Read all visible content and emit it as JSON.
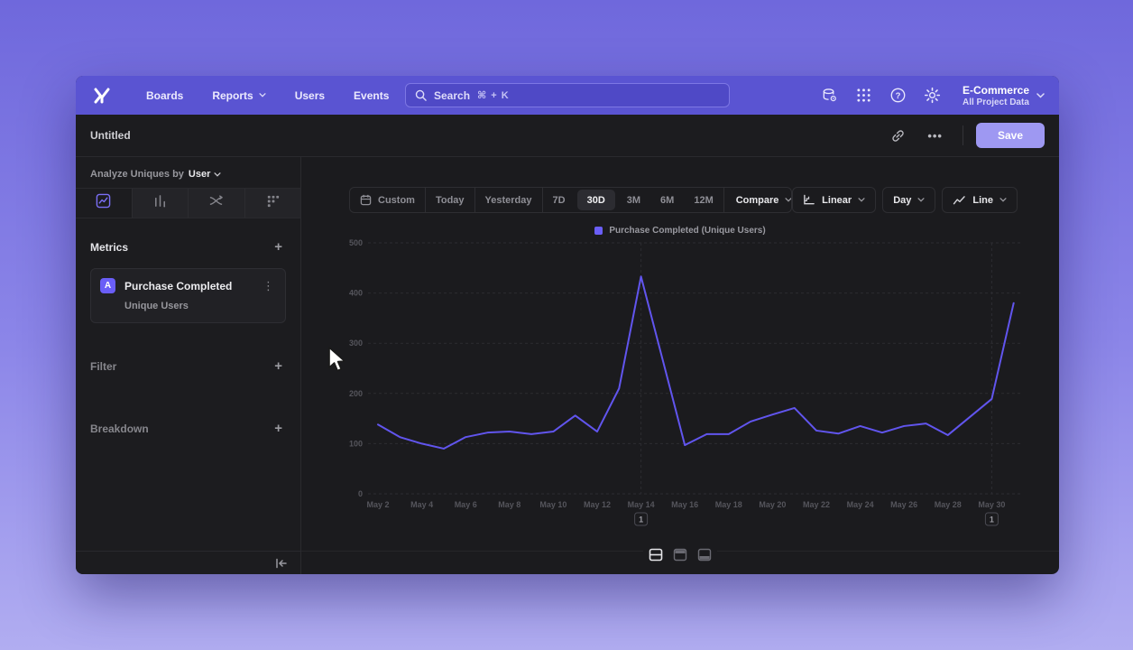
{
  "topnav": {
    "items": [
      {
        "label": "Boards",
        "chevron": false
      },
      {
        "label": "Reports",
        "chevron": true
      },
      {
        "label": "Users",
        "chevron": false
      },
      {
        "label": "Events",
        "chevron": false
      }
    ],
    "search": {
      "placeholder": "Search",
      "shortcut": "⌘ + K"
    },
    "project": {
      "name": "E-Commerce",
      "scope": "All Project Data"
    }
  },
  "header": {
    "title": "Untitled",
    "ellipsis": "•••",
    "save_label": "Save"
  },
  "sidebar": {
    "analyze": {
      "prefix": "Analyze Uniques by",
      "entity": "User"
    },
    "tabs": [
      "insights",
      "bar",
      "flows",
      "retention"
    ],
    "selected_tab": "insights",
    "metrics_label": "Metrics",
    "filter_label": "Filter",
    "breakdown_label": "Breakdown",
    "metric_card": {
      "badge": "A",
      "title": "Purchase Completed",
      "subtitle": "Unique Users"
    }
  },
  "toolbar": {
    "ranges": [
      "Custom",
      "Today",
      "Yesterday",
      "7D",
      "30D",
      "3M",
      "6M",
      "12M"
    ],
    "selected_range": "30D",
    "compare_label": "Compare",
    "scale_label": "Linear",
    "interval_label": "Day",
    "chart_type_label": "Line"
  },
  "legend": {
    "label": "Purchase Completed (Unique Users)"
  },
  "chart_data": {
    "type": "line",
    "title": "Purchase Completed (Unique Users)",
    "xlabel": "",
    "ylabel": "",
    "ylim": [
      0,
      500
    ],
    "yticks": [
      0,
      100,
      200,
      300,
      400,
      500
    ],
    "grid": "dashed-horizontal",
    "legend_position": "top-center",
    "series_color": "#6a5ef7",
    "x": [
      "May 2",
      "May 3",
      "May 4",
      "May 5",
      "May 6",
      "May 7",
      "May 8",
      "May 9",
      "May 10",
      "May 11",
      "May 12",
      "May 13",
      "May 14",
      "May 15",
      "May 16",
      "May 17",
      "May 18",
      "May 19",
      "May 20",
      "May 21",
      "May 22",
      "May 23",
      "May 24",
      "May 25",
      "May 26",
      "May 27",
      "May 28",
      "May 29",
      "May 30",
      "May 31"
    ],
    "values": [
      138,
      113,
      100,
      90,
      113,
      122,
      124,
      119,
      124,
      156,
      124,
      210,
      433,
      265,
      97,
      119,
      119,
      144,
      158,
      171,
      126,
      120,
      135,
      122,
      135,
      140,
      117,
      153,
      189,
      380
    ],
    "annotations": [
      {
        "index": 12,
        "label": "1"
      },
      {
        "index": 28,
        "label": "1"
      }
    ]
  },
  "colors": {
    "accent": "#6a5ef7",
    "nav": "#5a54d2",
    "save": "#9e98f2",
    "line": "#6155ee"
  }
}
